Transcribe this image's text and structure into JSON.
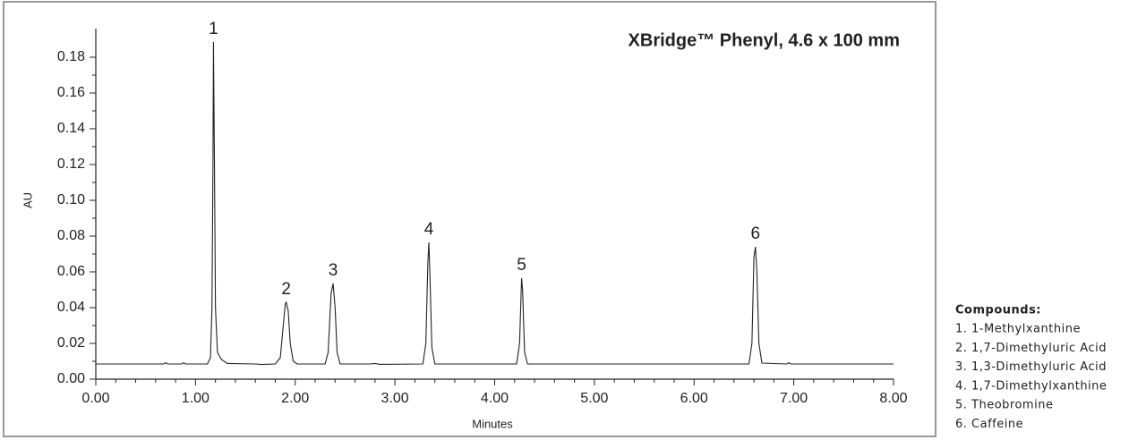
{
  "chart_data": {
    "type": "line",
    "title": "XBridge™ Phenyl, 4.6 x 100 mm",
    "x_label": "Minutes",
    "y_label": "AU",
    "xlim": [
      0,
      8
    ],
    "ylim": [
      0,
      0.196
    ],
    "xticks": [
      {
        "value": 0,
        "label": "0.00"
      },
      {
        "value": 1,
        "label": "1.00"
      },
      {
        "value": 2,
        "label": "2.00"
      },
      {
        "value": 3,
        "label": "3.00"
      },
      {
        "value": 4,
        "label": "4.00"
      },
      {
        "value": 5,
        "label": "5.00"
      },
      {
        "value": 6,
        "label": "6.00"
      },
      {
        "value": 7,
        "label": "7.00"
      },
      {
        "value": 8,
        "label": "8.00"
      }
    ],
    "yticks": [
      {
        "value": 0,
        "label": "0.00"
      },
      0.02,
      0.04,
      0.06,
      0.08,
      {
        "value": 0.1,
        "label": "0.10"
      },
      0.12,
      0.14,
      0.16,
      0.18
    ],
    "series": [
      {
        "name": "AU",
        "color": "#222222",
        "x": [
          0,
          0.68,
          0.7,
          0.72,
          0.86,
          0.88,
          0.9,
          1.12,
          1.15,
          1.165,
          1.175,
          1.18,
          1.19,
          1.2,
          1.22,
          1.26,
          1.32,
          1.6,
          1.66,
          1.8,
          1.85,
          1.88,
          1.9,
          1.91,
          1.93,
          1.95,
          1.98,
          2.02,
          2.3,
          2.33,
          2.36,
          2.38,
          2.4,
          2.42,
          2.45,
          2.75,
          2.8,
          2.85,
          3.28,
          3.31,
          3.33,
          3.34,
          3.35,
          3.37,
          3.4,
          4.22,
          4.25,
          4.27,
          4.28,
          4.3,
          4.33,
          6.55,
          6.58,
          6.6,
          6.615,
          6.63,
          6.65,
          6.68,
          6.93,
          6.95,
          6.97,
          8
        ],
        "values": [
          0.0085,
          0.0085,
          0.0092,
          0.0085,
          0.0085,
          0.0092,
          0.0085,
          0.0085,
          0.012,
          0.04,
          0.12,
          0.1885,
          0.12,
          0.04,
          0.015,
          0.011,
          0.0088,
          0.0085,
          0.0082,
          0.0085,
          0.012,
          0.03,
          0.042,
          0.043,
          0.038,
          0.02,
          0.01,
          0.0085,
          0.0085,
          0.015,
          0.048,
          0.0535,
          0.04,
          0.015,
          0.0085,
          0.0085,
          0.0088,
          0.0083,
          0.0085,
          0.02,
          0.065,
          0.0765,
          0.06,
          0.018,
          0.0085,
          0.0085,
          0.02,
          0.0565,
          0.05,
          0.015,
          0.0085,
          0.0085,
          0.02,
          0.068,
          0.074,
          0.06,
          0.02,
          0.009,
          0.0085,
          0.0092,
          0.0085,
          0.0085
        ]
      }
    ],
    "peaks": [
      {
        "label": "1",
        "x": 1.18,
        "y": 0.1885
      },
      {
        "label": "2",
        "x": 1.91,
        "y": 0.043
      },
      {
        "label": "3",
        "x": 2.38,
        "y": 0.0535
      },
      {
        "label": "4",
        "x": 3.34,
        "y": 0.0765
      },
      {
        "label": "5",
        "x": 4.27,
        "y": 0.0565
      },
      {
        "label": "6",
        "x": 6.615,
        "y": 0.074
      }
    ],
    "compounds": {
      "title": "Compounds:",
      "items": [
        "1. 1-Methylxanthine",
        "2. 1,7-Dimethyluric Acid",
        "3. 1,3-Dimethyluric Acid",
        "4. 1,7-Dimethylxanthine",
        "5. Theobromine",
        "6. Caffeine"
      ]
    }
  }
}
